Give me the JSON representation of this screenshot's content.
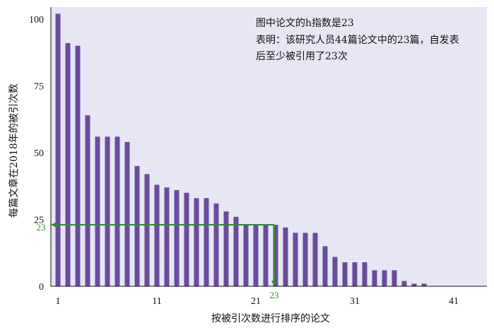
{
  "chart_data": {
    "type": "bar",
    "ylabel": "每篇文章在2018年的被引次数",
    "xlabel": "按被引次数进行排序的论文",
    "ylim": [
      0,
      105
    ],
    "xlim": [
      0,
      44
    ],
    "yticks": [
      0,
      25,
      50,
      75,
      100
    ],
    "xticks": [
      1,
      11,
      21,
      31,
      41
    ],
    "annotation": {
      "line1": "图中论文的h指数是23",
      "line2": "表明：该研究人员44篇论文中的23篇，自发表",
      "line3": "后至少被引用了23次"
    },
    "h_index_marker": {
      "x": 23,
      "y": 23,
      "x_label": "23",
      "y_label": "23",
      "color": "#2e8b2e"
    },
    "bar_color": "#6a4c9c",
    "background_color": "#e6e6f4",
    "x": [
      1,
      2,
      3,
      4,
      5,
      6,
      7,
      8,
      9,
      10,
      11,
      12,
      13,
      14,
      15,
      16,
      17,
      18,
      19,
      20,
      21,
      22,
      23,
      24,
      25,
      26,
      27,
      28,
      29,
      30,
      31,
      32,
      33,
      34,
      35,
      36,
      37,
      38,
      39,
      40,
      41,
      42,
      43,
      44
    ],
    "values": [
      102,
      91,
      90,
      64,
      56,
      56,
      56,
      54,
      45,
      42,
      38,
      37,
      36,
      35,
      33,
      33,
      31,
      28,
      26,
      23,
      23,
      23,
      23,
      22,
      20,
      20,
      20,
      15,
      11,
      9,
      9,
      9,
      6,
      6,
      6,
      2,
      1,
      1,
      0,
      0,
      0,
      0,
      0,
      0
    ]
  }
}
